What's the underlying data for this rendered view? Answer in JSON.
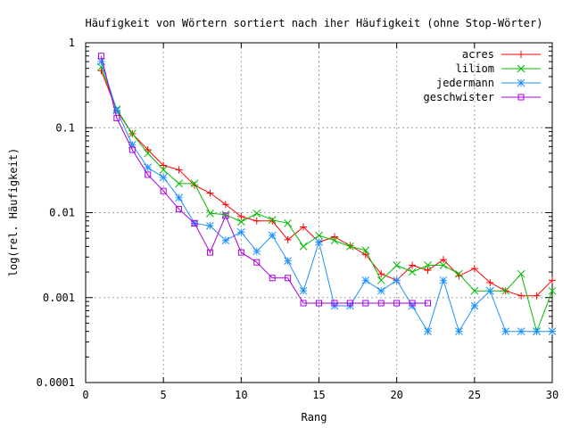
{
  "chart_data": {
    "type": "line",
    "title": "Häufigkeit von Wörtern sortiert nach iher Häufigkeit (ohne Stop-Wörter)",
    "xlabel": "Rang",
    "ylabel": "log(rel. Häufigkeit)",
    "xlim": [
      0,
      30
    ],
    "ylim": [
      0.0001,
      1
    ],
    "yscale": "log",
    "grid": true,
    "legend_position": "top-right",
    "x_ticks": [
      "0",
      "5",
      "10",
      "15",
      "20",
      "25",
      "30"
    ],
    "x_tick_values": [
      0,
      5,
      10,
      15,
      20,
      25,
      30
    ],
    "y_ticks": [
      "1",
      "0.1",
      "0.01",
      "0.001",
      "0.0001"
    ],
    "y_tick_values": [
      1,
      0.1,
      0.01,
      0.001,
      0.0001
    ],
    "series": [
      {
        "name": "acres",
        "color": "#ff0000",
        "marker": "plus",
        "x": [
          1,
          2,
          3,
          4,
          5,
          6,
          7,
          8,
          9,
          10,
          11,
          12,
          13,
          14,
          15,
          16,
          17,
          18,
          19,
          20,
          21,
          22,
          23,
          24,
          25,
          26,
          27,
          28,
          29,
          30
        ],
        "values": [
          0.47,
          0.16,
          0.085,
          0.055,
          0.036,
          0.032,
          0.021,
          0.017,
          0.0125,
          0.009,
          0.008,
          0.008,
          0.0048,
          0.0068,
          0.0045,
          0.0052,
          0.0041,
          0.0032,
          0.0019,
          0.0016,
          0.0024,
          0.0021,
          0.0028,
          0.0018,
          0.0022,
          0.0015,
          0.0012,
          0.00105,
          0.00105,
          0.0016
        ]
      },
      {
        "name": "liliom",
        "color": "#00bb00",
        "marker": "x",
        "x": [
          1,
          2,
          3,
          4,
          5,
          6,
          7,
          8,
          9,
          10,
          11,
          12,
          13,
          14,
          15,
          16,
          17,
          18,
          19,
          20,
          21,
          22,
          23,
          24,
          25,
          26,
          27,
          28,
          29,
          30
        ],
        "values": [
          0.52,
          0.165,
          0.085,
          0.05,
          0.032,
          0.022,
          0.022,
          0.0098,
          0.0095,
          0.0078,
          0.0098,
          0.0082,
          0.0075,
          0.004,
          0.0054,
          0.0047,
          0.004,
          0.0036,
          0.0016,
          0.0024,
          0.002,
          0.0024,
          0.0024,
          0.0019,
          0.0012,
          0.0012,
          0.0012,
          0.0019,
          0.0004,
          0.0012
        ]
      },
      {
        "name": "jedermann",
        "color": "#1e90ff",
        "marker": "star",
        "x": [
          1,
          2,
          3,
          4,
          5,
          6,
          7,
          8,
          9,
          10,
          11,
          12,
          13,
          14,
          15,
          16,
          17,
          18,
          19,
          20,
          21,
          22,
          23,
          24,
          25,
          26,
          27,
          28,
          29,
          30
        ],
        "values": [
          0.6,
          0.16,
          0.063,
          0.034,
          0.026,
          0.015,
          0.0075,
          0.007,
          0.0047,
          0.0059,
          0.0035,
          0.0054,
          0.0027,
          0.0012,
          0.0045,
          0.0008,
          0.0008,
          0.0016,
          0.0012,
          0.0016,
          0.0008,
          0.0004,
          0.0016,
          0.0004,
          0.0008,
          0.0012,
          0.0004,
          0.0004,
          0.0004,
          0.0004
        ]
      },
      {
        "name": "geschwister",
        "color": "#aa00dd",
        "marker": "square",
        "x": [
          1,
          2,
          3,
          4,
          5,
          6,
          7,
          8,
          9,
          10,
          11,
          12,
          13,
          14,
          15,
          16,
          17,
          18,
          19,
          20,
          21,
          22
        ],
        "values": [
          0.7,
          0.13,
          0.055,
          0.028,
          0.018,
          0.011,
          0.0075,
          0.0034,
          0.0092,
          0.0034,
          0.0026,
          0.0017,
          0.0017,
          0.00086,
          0.00086,
          0.00086,
          0.00086,
          0.00086,
          0.00086,
          0.00086,
          0.00086,
          0.00086
        ]
      }
    ]
  }
}
